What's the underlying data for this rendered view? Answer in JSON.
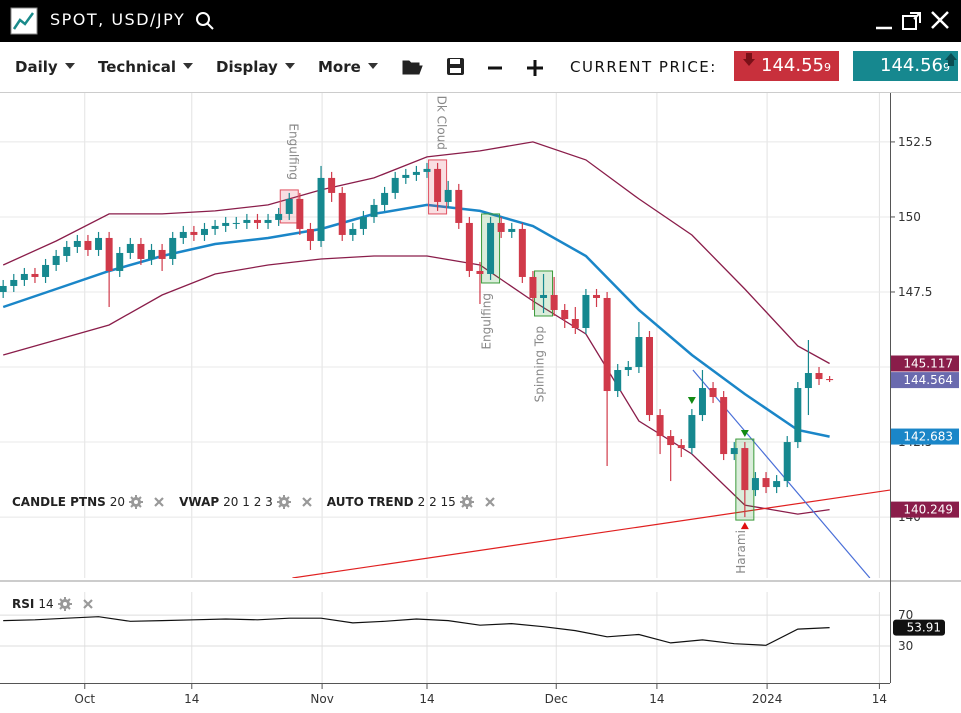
{
  "window": {
    "title": "SPOT, USD/JPY"
  },
  "toolbar": {
    "period": "Daily",
    "menus": [
      "Technical",
      "Display",
      "More"
    ],
    "price_label": "CURRENT PRICE:",
    "bid": {
      "main": "144.55",
      "pip": "9"
    },
    "ask": {
      "main": "144.56",
      "pip": "9"
    }
  },
  "indicators": [
    {
      "name": "CANDLE PTNS",
      "params": "20"
    },
    {
      "name": "VWAP",
      "params": "20 1 2 3"
    },
    {
      "name": "AUTO TREND",
      "params": "2 2 15"
    },
    {
      "name": "RSI",
      "params": "14"
    }
  ],
  "chart_data": [
    {
      "type": "candlestick",
      "up_color": "#16888f",
      "down_color": "#d03a4a",
      "xlim": [
        -0.3,
        83.7
      ],
      "ylim": [
        137.97,
        154.13
      ],
      "grid": true,
      "xticks": [
        {
          "value": 7.7,
          "label": "Oct"
        },
        {
          "value": 17.8,
          "label": "14"
        },
        {
          "value": 30.1,
          "label": "Nov"
        },
        {
          "value": 40,
          "label": "14"
        },
        {
          "value": 52.2,
          "label": "Dec"
        },
        {
          "value": 61.7,
          "label": "14"
        },
        {
          "value": 72.1,
          "label": "2024"
        },
        {
          "value": 82.7,
          "label": "14"
        }
      ],
      "yticks": [
        140,
        142.5,
        145,
        147.5,
        150,
        152.5
      ],
      "x": [
        0,
        1,
        2,
        3,
        4,
        5,
        6,
        7,
        8,
        9,
        10,
        11,
        12,
        13,
        14,
        15,
        16,
        17,
        18,
        19,
        20,
        21,
        22,
        23,
        24,
        25,
        26,
        27,
        28,
        29,
        30,
        31,
        32,
        33,
        34,
        35,
        36,
        37,
        38,
        39,
        40,
        41,
        42,
        43,
        44,
        45,
        46,
        47,
        48,
        49,
        50,
        51,
        52,
        53,
        54,
        55,
        56,
        57,
        58,
        59,
        60,
        61,
        62,
        63,
        64,
        65,
        66,
        67,
        68,
        69,
        70,
        71,
        72,
        73,
        74,
        75,
        76,
        77,
        78
      ],
      "open": [
        147.5,
        147.7,
        147.9,
        148.1,
        148.0,
        148.4,
        148.7,
        149.0,
        149.2,
        148.9,
        149.3,
        148.2,
        148.8,
        149.1,
        148.6,
        148.9,
        148.6,
        149.3,
        149.5,
        149.4,
        149.6,
        149.7,
        149.8,
        149.8,
        149.9,
        149.8,
        149.9,
        150.1,
        150.6,
        149.6,
        149.2,
        151.3,
        150.8,
        149.4,
        149.6,
        150.0,
        150.4,
        150.8,
        151.3,
        151.4,
        151.5,
        151.6,
        150.5,
        150.9,
        149.8,
        148.2,
        148.1,
        149.8,
        149.5,
        149.6,
        148.0,
        147.3,
        147.4,
        146.9,
        146.6,
        146.3,
        147.4,
        147.3,
        144.2,
        144.9,
        145.0,
        146.0,
        143.4,
        142.7,
        142.4,
        142.3,
        143.4,
        144.3,
        144.0,
        142.1,
        142.3,
        140.9,
        141.3,
        141.0,
        141.2,
        142.5,
        144.3,
        144.8,
        144.6
      ],
      "high": [
        147.9,
        148.1,
        148.3,
        148.3,
        148.6,
        148.9,
        149.2,
        149.4,
        149.4,
        149.5,
        149.5,
        149.0,
        149.3,
        149.3,
        149.1,
        149.1,
        149.5,
        149.7,
        149.7,
        149.8,
        149.9,
        150.0,
        150.0,
        150.1,
        150.1,
        150.1,
        150.3,
        150.8,
        150.8,
        149.8,
        151.7,
        151.5,
        151.0,
        149.8,
        150.2,
        150.6,
        151.0,
        151.5,
        151.6,
        151.7,
        151.8,
        151.8,
        151.2,
        151.1,
        150.0,
        148.5,
        150.0,
        150.0,
        149.8,
        149.8,
        148.2,
        148.1,
        148.0,
        147.1,
        147.0,
        147.6,
        147.6,
        147.5,
        145.1,
        145.2,
        146.5,
        146.2,
        143.6,
        142.9,
        142.6,
        143.6,
        144.9,
        144.5,
        144.2,
        142.5,
        142.5,
        141.5,
        141.5,
        141.4,
        142.7,
        144.5,
        145.9,
        145.0,
        144.7
      ],
      "low": [
        147.3,
        147.5,
        147.7,
        147.8,
        147.8,
        148.2,
        148.5,
        148.8,
        148.7,
        148.7,
        147.0,
        148.0,
        148.6,
        148.4,
        148.4,
        148.2,
        148.4,
        149.1,
        149.2,
        149.2,
        149.4,
        149.5,
        149.6,
        149.6,
        149.6,
        149.6,
        149.7,
        149.9,
        149.4,
        148.9,
        149.0,
        150.5,
        149.2,
        149.2,
        149.4,
        149.8,
        150.2,
        150.6,
        151.1,
        151.2,
        151.3,
        150.2,
        150.3,
        149.6,
        148.0,
        147.1,
        147.9,
        149.3,
        149.3,
        147.8,
        146.9,
        146.8,
        146.7,
        146.3,
        146.1,
        146.1,
        147.0,
        141.7,
        144.0,
        144.7,
        144.8,
        143.2,
        142.1,
        141.2,
        142.0,
        142.1,
        143.2,
        143.8,
        141.9,
        141.9,
        140.0,
        140.7,
        140.8,
        140.8,
        141.0,
        142.3,
        143.4,
        144.4,
        144.5
      ],
      "close": [
        147.7,
        147.9,
        148.1,
        148.0,
        148.4,
        148.7,
        149.0,
        149.2,
        148.9,
        149.3,
        148.2,
        148.8,
        149.1,
        148.6,
        148.9,
        148.6,
        149.3,
        149.5,
        149.4,
        149.6,
        149.7,
        149.8,
        149.8,
        149.9,
        149.8,
        149.9,
        150.1,
        150.6,
        149.6,
        149.2,
        151.3,
        150.8,
        149.4,
        149.6,
        150.0,
        150.4,
        150.8,
        151.3,
        151.4,
        151.5,
        151.6,
        150.5,
        150.9,
        149.8,
        148.2,
        148.1,
        149.8,
        149.5,
        149.6,
        148.0,
        147.3,
        147.4,
        146.9,
        146.6,
        146.3,
        147.4,
        147.3,
        144.2,
        144.9,
        145.0,
        146.0,
        143.4,
        142.7,
        142.4,
        142.3,
        143.4,
        144.3,
        144.0,
        142.1,
        142.3,
        140.9,
        141.3,
        141.0,
        141.2,
        142.5,
        144.3,
        144.8,
        144.6,
        144.564
      ],
      "last_color": "#6a6aae",
      "overlays": [
        {
          "color": "#8a1d4a",
          "width": 1.3,
          "x": [
            0,
            5,
            10,
            15,
            20,
            25,
            30,
            35,
            40,
            45,
            50,
            55,
            60,
            65,
            70,
            75,
            78
          ],
          "values": [
            148.4,
            149.2,
            150.1,
            150.1,
            150.2,
            150.4,
            150.9,
            151.3,
            152.0,
            152.2,
            152.5,
            151.9,
            150.6,
            149.4,
            147.6,
            145.7,
            145.117
          ]
        },
        {
          "color": "#1a86c8",
          "width": 2.5,
          "x": [
            0,
            5,
            10,
            15,
            20,
            25,
            30,
            35,
            40,
            45,
            50,
            55,
            60,
            65,
            70,
            75,
            78
          ],
          "values": [
            147.0,
            147.6,
            148.2,
            148.7,
            149.1,
            149.3,
            149.6,
            150.1,
            150.4,
            150.2,
            149.7,
            148.7,
            146.9,
            145.4,
            144.1,
            142.9,
            142.683
          ]
        },
        {
          "color": "#8a1d4a",
          "width": 1.3,
          "x": [
            0,
            5,
            10,
            15,
            20,
            25,
            30,
            35,
            40,
            45,
            50,
            55,
            60,
            65,
            70,
            75,
            78
          ],
          "values": [
            145.4,
            145.9,
            146.4,
            147.4,
            148.1,
            148.4,
            148.6,
            148.7,
            148.7,
            148.4,
            147.2,
            146.1,
            143.2,
            142.1,
            140.4,
            140.1,
            140.249
          ]
        }
      ],
      "trend_lines": [
        {
          "color": "#e02020",
          "x": [
            27.3,
            83.7
          ],
          "values": [
            137.97,
            140.9
          ]
        },
        {
          "color": "#4a6fd8",
          "x": [
            65.1,
            81.8
          ],
          "values": [
            144.9,
            137.97
          ]
        }
      ],
      "patterns": [
        {
          "label": "Engulfing",
          "x": 27,
          "color": "#e05060",
          "position": "above"
        },
        {
          "label": "Dk Cloud",
          "x": 41,
          "color": "#e05060",
          "position": "above"
        },
        {
          "label": "Engulfing",
          "x": 46,
          "color": "#3a9a3a",
          "position": "below"
        },
        {
          "label": "Spinning Top",
          "x": 51,
          "color": "#3a9a3a",
          "position": "below"
        },
        {
          "label": "Harami",
          "x": 70,
          "color": "#3a9a3a",
          "position": "below"
        }
      ],
      "signals": [
        {
          "x": 65,
          "direction": "down",
          "color": "#138a13"
        },
        {
          "x": 70,
          "direction": "down",
          "color": "#138a13"
        },
        {
          "x": 70,
          "direction": "up",
          "color": "#e01010"
        }
      ]
    },
    {
      "type": "line",
      "color": "#111111",
      "xlim": [
        -0.3,
        83.7
      ],
      "ylim": [
        -14,
        100
      ],
      "yticks": [
        30,
        70
      ],
      "x": [
        0,
        3,
        6,
        9,
        12,
        15,
        18,
        21,
        24,
        27,
        30,
        33,
        36,
        39,
        42,
        45,
        48,
        51,
        54,
        57,
        60,
        63,
        66,
        69,
        72,
        75,
        78
      ],
      "values": [
        63,
        64,
        66,
        68,
        62,
        63,
        64,
        65,
        64,
        66,
        66,
        60,
        62,
        65,
        63,
        57,
        59,
        55,
        50,
        42,
        45,
        34,
        38,
        33,
        31,
        52,
        53.91
      ]
    }
  ]
}
